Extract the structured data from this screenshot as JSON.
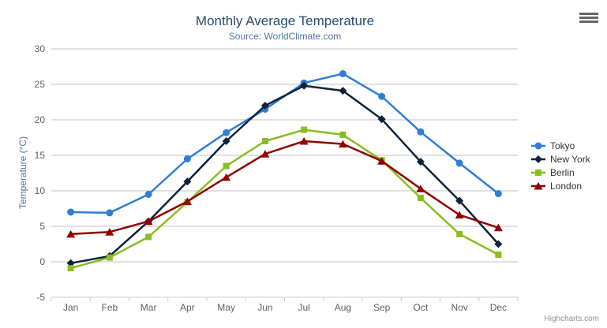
{
  "header": {
    "title": "Monthly Average Temperature",
    "subtitle": "Source: WorldClimate.com"
  },
  "credits": {
    "label": "Highcharts.com"
  },
  "export_menu": {
    "icon": "hamburger-icon"
  },
  "colors": {
    "title": "#274b6d",
    "subtitle": "#4d759e",
    "axis_title": "#4d759e",
    "tick_labels": "#606060",
    "gridline": "#c0c0c0",
    "axis_line": "#c0d0e0",
    "legend_text": "#333333",
    "credits_text": "#909090",
    "menu_icon": "#666666"
  },
  "chart_data": {
    "type": "line",
    "title": "Monthly Average Temperature",
    "subtitle": "Source: WorldClimate.com",
    "xlabel": "",
    "ylabel": "Temperature (°C)",
    "ylim": [
      -5,
      30
    ],
    "yticks": [
      -5,
      0,
      5,
      10,
      15,
      20,
      25,
      30
    ],
    "grid": true,
    "legend_position": "right",
    "categories": [
      "Jan",
      "Feb",
      "Mar",
      "Apr",
      "May",
      "Jun",
      "Jul",
      "Aug",
      "Sep",
      "Oct",
      "Nov",
      "Dec"
    ],
    "series": [
      {
        "name": "Tokyo",
        "color": "#2f7ed8",
        "marker": "circle",
        "values": [
          7.0,
          6.9,
          9.5,
          14.5,
          18.2,
          21.5,
          25.2,
          26.5,
          23.3,
          18.3,
          13.9,
          9.6
        ]
      },
      {
        "name": "New York",
        "color": "#0d233a",
        "marker": "diamond",
        "values": [
          -0.2,
          0.8,
          5.7,
          11.3,
          17.0,
          22.0,
          24.8,
          24.1,
          20.1,
          14.1,
          8.6,
          2.5
        ]
      },
      {
        "name": "Berlin",
        "color": "#8bbc21",
        "marker": "square",
        "values": [
          -0.9,
          0.6,
          3.5,
          8.4,
          13.5,
          17.0,
          18.6,
          17.9,
          14.3,
          9.0,
          3.9,
          1.0
        ]
      },
      {
        "name": "London",
        "color": "#910000",
        "marker": "triangle",
        "values": [
          3.9,
          4.2,
          5.7,
          8.5,
          11.9,
          15.2,
          17.0,
          16.6,
          14.2,
          10.3,
          6.6,
          4.8
        ]
      }
    ]
  }
}
